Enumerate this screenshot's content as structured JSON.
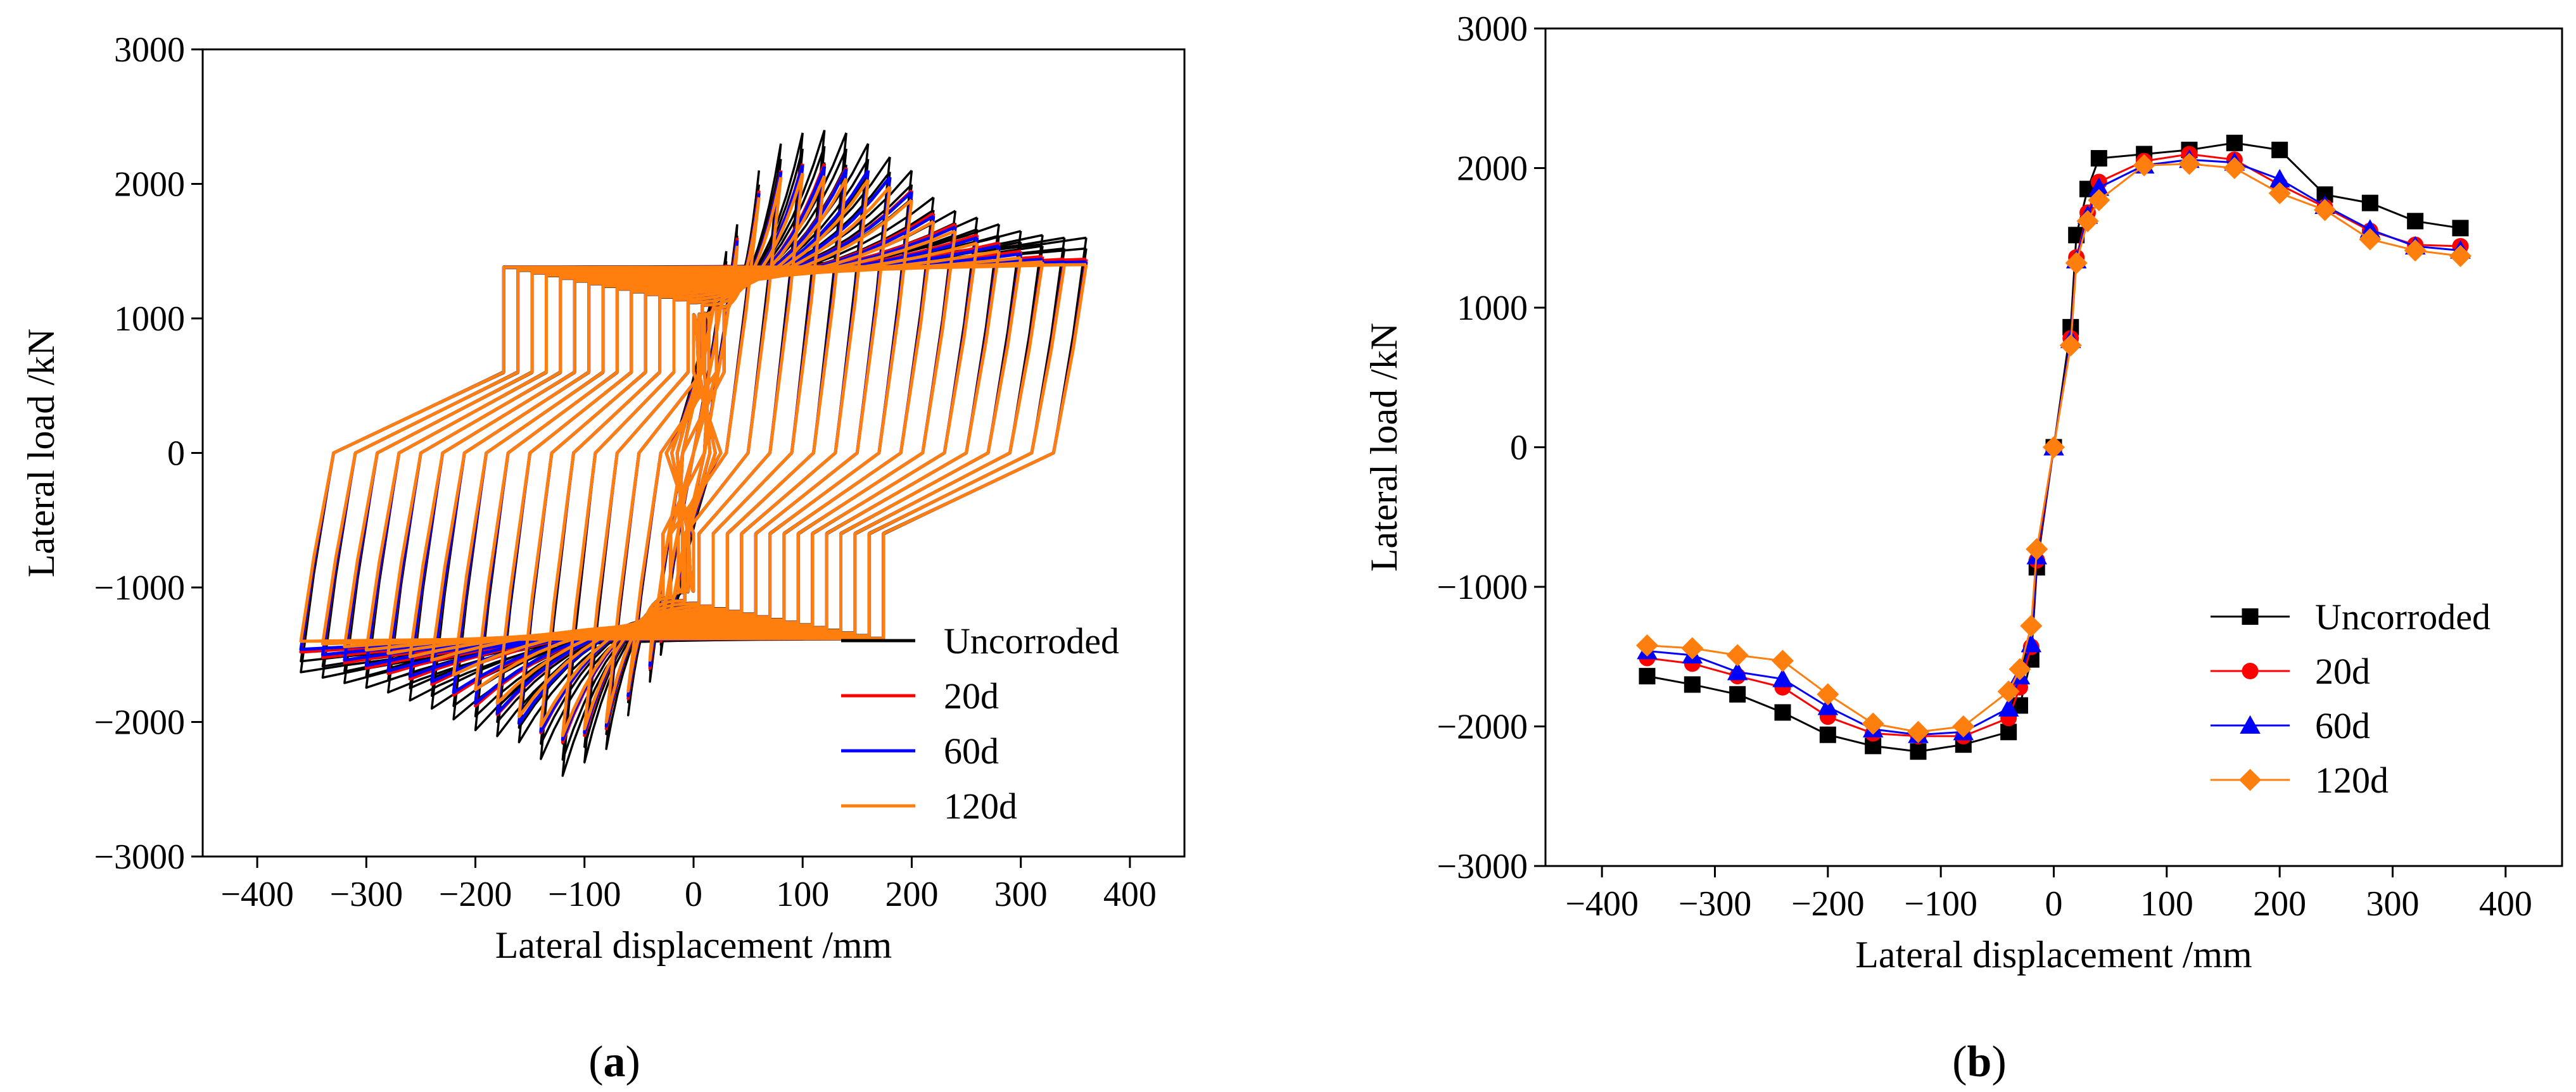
{
  "chart_data": [
    {
      "panel": "a",
      "caption": "(a)",
      "caption_letter": "a",
      "type": "line",
      "subtype": "hysteresis",
      "xlabel": "Lateral displacement /mm",
      "ylabel": "Lateral load /kN",
      "xlim": [
        -450,
        450
      ],
      "ylim": [
        -3000,
        3000
      ],
      "xticks": [
        -400,
        -300,
        -200,
        -100,
        0,
        100,
        200,
        300,
        400
      ],
      "yticks": [
        -3000,
        -2000,
        -1000,
        0,
        1000,
        2000,
        3000
      ],
      "xtick_labels": [
        "−400",
        "−300",
        "−200",
        "−100",
        "0",
        "100",
        "200",
        "300",
        "400"
      ],
      "ytick_labels": [
        "−3000",
        "−2000",
        "−1000",
        "0",
        "1000",
        "2000",
        "3000"
      ],
      "legend_position": "bottom-right",
      "cycle_amplitudes_mm": [
        5,
        10,
        15,
        20,
        30,
        40,
        60,
        80,
        100,
        120,
        140,
        160,
        180,
        200,
        220,
        240,
        260,
        280,
        300,
        320,
        340,
        360
      ],
      "series": [
        {
          "name": "Uncorroded",
          "color": "#000000",
          "cycles_per_level": 3,
          "skeleton_x": [
            -360,
            -320,
            -280,
            -240,
            -200,
            -160,
            -120,
            -80,
            -40,
            -30,
            -20,
            -15,
            -10,
            -5,
            0,
            5,
            10,
            15,
            20,
            30,
            40,
            60,
            80,
            100,
            120,
            140,
            160,
            180,
            200,
            220,
            240,
            260,
            280,
            300,
            320,
            340,
            360
          ],
          "skeleton_y": [
            -1630,
            -1710,
            -1780,
            -1900,
            -2060,
            -2150,
            -2400,
            -2200,
            -1700,
            -1500,
            -1300,
            -1100,
            -900,
            -500,
            0,
            500,
            900,
            1100,
            1300,
            1500,
            1700,
            2100,
            2300,
            2380,
            2400,
            2380,
            2300,
            2200,
            2100,
            1900,
            1800,
            1750,
            1700,
            1650,
            1620,
            1600,
            1600
          ]
        },
        {
          "name": "20d",
          "color": "#ff0000",
          "cycles_per_level": 1,
          "skeleton_x": [
            -360,
            -320,
            -280,
            -240,
            -200,
            -160,
            -120,
            -80,
            -40,
            -30,
            -20,
            -15,
            -10,
            -5,
            0,
            5,
            10,
            15,
            20,
            30,
            40,
            60,
            80,
            100,
            120,
            140,
            160,
            180,
            200,
            220,
            240,
            260,
            280,
            300,
            320,
            340,
            360
          ],
          "skeleton_y": [
            -1480,
            -1560,
            -1640,
            -1720,
            -1880,
            -2010,
            -2150,
            -2050,
            -1600,
            -1400,
            -1200,
            -1000,
            -800,
            -450,
            0,
            450,
            800,
            1000,
            1200,
            1400,
            1600,
            1950,
            2100,
            2150,
            2150,
            2120,
            2100,
            2050,
            1950,
            1780,
            1700,
            1620,
            1560,
            1500,
            1460,
            1440,
            1440
          ]
        },
        {
          "name": "60d",
          "color": "#0000ff",
          "cycles_per_level": 1,
          "skeleton_x": [
            -360,
            -320,
            -280,
            -240,
            -200,
            -160,
            -120,
            -80,
            -40,
            -30,
            -20,
            -15,
            -10,
            -5,
            0,
            5,
            10,
            15,
            20,
            30,
            40,
            60,
            80,
            100,
            120,
            140,
            160,
            180,
            200,
            220,
            240,
            260,
            280,
            300,
            320,
            340,
            360
          ],
          "skeleton_y": [
            -1460,
            -1540,
            -1620,
            -1700,
            -1860,
            -2010,
            -2130,
            -2030,
            -1580,
            -1380,
            -1180,
            -980,
            -780,
            -430,
            0,
            430,
            780,
            980,
            1180,
            1380,
            1580,
            1930,
            2090,
            2140,
            2130,
            2110,
            2100,
            2050,
            1940,
            1760,
            1680,
            1600,
            1540,
            1480,
            1440,
            1420,
            1420
          ]
        },
        {
          "name": "120d",
          "color": "#ff7f0e",
          "cycles_per_level": 1,
          "skeleton_x": [
            -360,
            -320,
            -280,
            -240,
            -200,
            -160,
            -120,
            -80,
            -40,
            -30,
            -20,
            -15,
            -10,
            -5,
            0,
            5,
            10,
            15,
            20,
            30,
            40,
            60,
            80,
            100,
            120,
            140,
            160,
            180,
            200,
            220,
            240,
            260,
            280,
            300,
            320,
            340,
            360
          ],
          "skeleton_y": [
            -1400,
            -1440,
            -1490,
            -1540,
            -1760,
            -1960,
            -2100,
            -2000,
            -1540,
            -1340,
            -1150,
            -950,
            -750,
            -420,
            0,
            420,
            750,
            950,
            1150,
            1340,
            1540,
            1900,
            2050,
            2080,
            2060,
            2040,
            2030,
            1980,
            1880,
            1720,
            1650,
            1560,
            1500,
            1450,
            1420,
            1400,
            1400
          ]
        }
      ]
    },
    {
      "panel": "b",
      "caption": "(b)",
      "caption_letter": "b",
      "type": "line",
      "subtype": "skeleton curve",
      "xlabel": "Lateral displacement /mm",
      "ylabel": "Lateral load /kN",
      "xlim": [
        -450,
        450
      ],
      "ylim": [
        -3000,
        3000
      ],
      "xticks": [
        -400,
        -300,
        -200,
        -100,
        0,
        100,
        200,
        300,
        400
      ],
      "yticks": [
        -3000,
        -2000,
        -1000,
        0,
        1000,
        2000,
        3000
      ],
      "xtick_labels": [
        "−400",
        "−300",
        "−200",
        "−100",
        "0",
        "100",
        "200",
        "300",
        "400"
      ],
      "ytick_labels": [
        "−3000",
        "−2000",
        "−1000",
        "0",
        "1000",
        "2000",
        "3000"
      ],
      "legend_position": "bottom-right",
      "x": [
        -360,
        -320,
        -280,
        -240,
        -200,
        -160,
        -120,
        -80,
        -40,
        -30,
        -20,
        -15,
        0,
        15,
        20,
        30,
        40,
        80,
        120,
        160,
        200,
        240,
        280,
        320,
        360
      ],
      "series": [
        {
          "name": "Uncorroded",
          "color": "#000000",
          "marker": "square",
          "values": [
            -1640,
            -1700,
            -1770,
            -1900,
            -2060,
            -2140,
            -2180,
            -2130,
            -2040,
            -1850,
            -1520,
            -860,
            0,
            860,
            1520,
            1850,
            2070,
            2100,
            2130,
            2180,
            2130,
            1810,
            1750,
            1620,
            1570
          ]
        },
        {
          "name": "20d",
          "color": "#ff0000",
          "marker": "circle",
          "values": [
            -1510,
            -1550,
            -1640,
            -1720,
            -1930,
            -2050,
            -2070,
            -2070,
            -1940,
            -1720,
            -1430,
            -810,
            0,
            780,
            1360,
            1680,
            1900,
            2050,
            2100,
            2060,
            1880,
            1720,
            1550,
            1450,
            1440
          ]
        },
        {
          "name": "60d",
          "color": "#0000ff",
          "marker": "triangle",
          "values": [
            -1460,
            -1490,
            -1610,
            -1660,
            -1860,
            -2020,
            -2060,
            -2040,
            -1870,
            -1640,
            -1410,
            -780,
            0,
            770,
            1340,
            1660,
            1860,
            2020,
            2060,
            2040,
            1920,
            1730,
            1560,
            1440,
            1410
          ]
        },
        {
          "name": "120d",
          "color": "#ff7f0e",
          "marker": "diamond",
          "values": [
            -1420,
            -1440,
            -1490,
            -1530,
            -1770,
            -1980,
            -2040,
            -2000,
            -1750,
            -1590,
            -1280,
            -730,
            0,
            730,
            1320,
            1620,
            1770,
            2020,
            2030,
            2000,
            1820,
            1700,
            1490,
            1410,
            1370
          ]
        }
      ]
    }
  ]
}
